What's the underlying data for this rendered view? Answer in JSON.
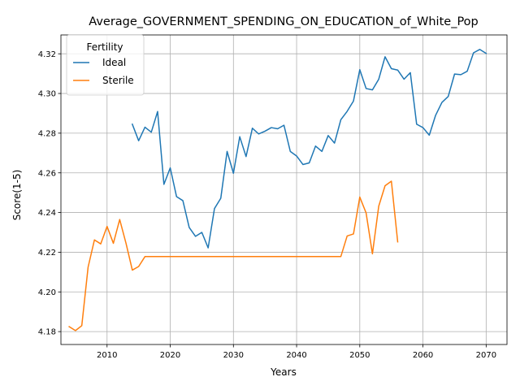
{
  "chart_data": {
    "type": "line",
    "title": "Average_GOVERNMENT_SPENDING_ON_EDUCATION_of_White_Pop",
    "xlabel": "Years",
    "ylabel": "Score(1-5)",
    "xlim": [
      2002.7,
      2073.3
    ],
    "ylim": [
      4.1735,
      4.3295
    ],
    "xticks": [
      2010,
      2020,
      2030,
      2040,
      2050,
      2060,
      2070
    ],
    "xtick_labels": [
      "2010",
      "2020",
      "2030",
      "2040",
      "2050",
      "2060",
      "2070"
    ],
    "yticks": [
      4.18,
      4.2,
      4.22,
      4.24,
      4.26,
      4.28,
      4.3,
      4.32
    ],
    "ytick_labels": [
      "4.18",
      "4.20",
      "4.22",
      "4.24",
      "4.26",
      "4.28",
      "4.30",
      "4.32"
    ],
    "grid": true,
    "legend": {
      "title": "Fertility",
      "placement": "top-left"
    },
    "series": [
      {
        "name": "Ideal",
        "color": "#1f77b4",
        "x": [
          2014,
          2015,
          2016,
          2017,
          2018,
          2019,
          2020,
          2021,
          2022,
          2023,
          2024,
          2025,
          2026,
          2027,
          2028,
          2029,
          2030,
          2031,
          2032,
          2033,
          2034,
          2035,
          2036,
          2037,
          2038,
          2039,
          2040,
          2041,
          2042,
          2043,
          2044,
          2045,
          2046,
          2047,
          2048,
          2049,
          2050,
          2051,
          2052,
          2053,
          2054,
          2055,
          2056,
          2057,
          2058,
          2059,
          2060,
          2061,
          2062,
          2063,
          2064,
          2065,
          2066,
          2067,
          2068,
          2069,
          2070
        ],
        "y": [
          4.2845,
          4.2762,
          4.283,
          4.2805,
          4.2909,
          4.2542,
          4.2625,
          4.248,
          4.246,
          4.2325,
          4.228,
          4.23,
          4.2222,
          4.242,
          4.2472,
          4.2708,
          4.2598,
          4.2782,
          4.2682,
          4.2825,
          4.2796,
          4.281,
          4.2828,
          4.2822,
          4.284,
          4.2708,
          4.2685,
          4.2642,
          4.265,
          4.2735,
          4.2708,
          4.2788,
          4.275,
          4.2868,
          4.291,
          4.2962,
          4.312,
          4.3025,
          4.3018,
          4.3072,
          4.3185,
          4.3125,
          4.3118,
          4.3072,
          4.3105,
          4.2845,
          4.2828,
          4.279,
          4.289,
          4.2955,
          4.2985,
          4.3098,
          4.3095,
          4.3112,
          4.3205,
          4.3222,
          4.3202
        ]
      },
      {
        "name": "Sterile",
        "color": "#ff7f0e",
        "x": [
          2004,
          2005,
          2006,
          2007,
          2008,
          2009,
          2010,
          2011,
          2012,
          2013,
          2014,
          2015,
          2016,
          2017,
          2018,
          2019,
          2020,
          2021,
          2022,
          2023,
          2024,
          2025,
          2026,
          2027,
          2028,
          2029,
          2030,
          2031,
          2032,
          2033,
          2034,
          2035,
          2036,
          2037,
          2038,
          2039,
          2040,
          2041,
          2042,
          2043,
          2044,
          2045,
          2046,
          2047,
          2048,
          2049,
          2050,
          2051,
          2052,
          2053,
          2054,
          2055,
          2056
        ],
        "y": [
          4.1825,
          4.1805,
          4.183,
          4.2125,
          4.2262,
          4.2242,
          4.233,
          4.2245,
          4.2365,
          4.2245,
          4.211,
          4.2128,
          4.2178,
          4.2178,
          4.2178,
          4.2178,
          4.2178,
          4.2178,
          4.2178,
          4.2178,
          4.2178,
          4.2178,
          4.2178,
          4.2178,
          4.2178,
          4.2178,
          4.2178,
          4.2178,
          4.2178,
          4.2178,
          4.2178,
          4.2178,
          4.2178,
          4.2178,
          4.2178,
          4.2178,
          4.2178,
          4.2178,
          4.2178,
          4.2178,
          4.2178,
          4.2178,
          4.2178,
          4.2178,
          4.2282,
          4.2292,
          4.2478,
          4.2398,
          4.2192,
          4.2432,
          4.2535,
          4.2558,
          4.2252
        ]
      }
    ]
  }
}
